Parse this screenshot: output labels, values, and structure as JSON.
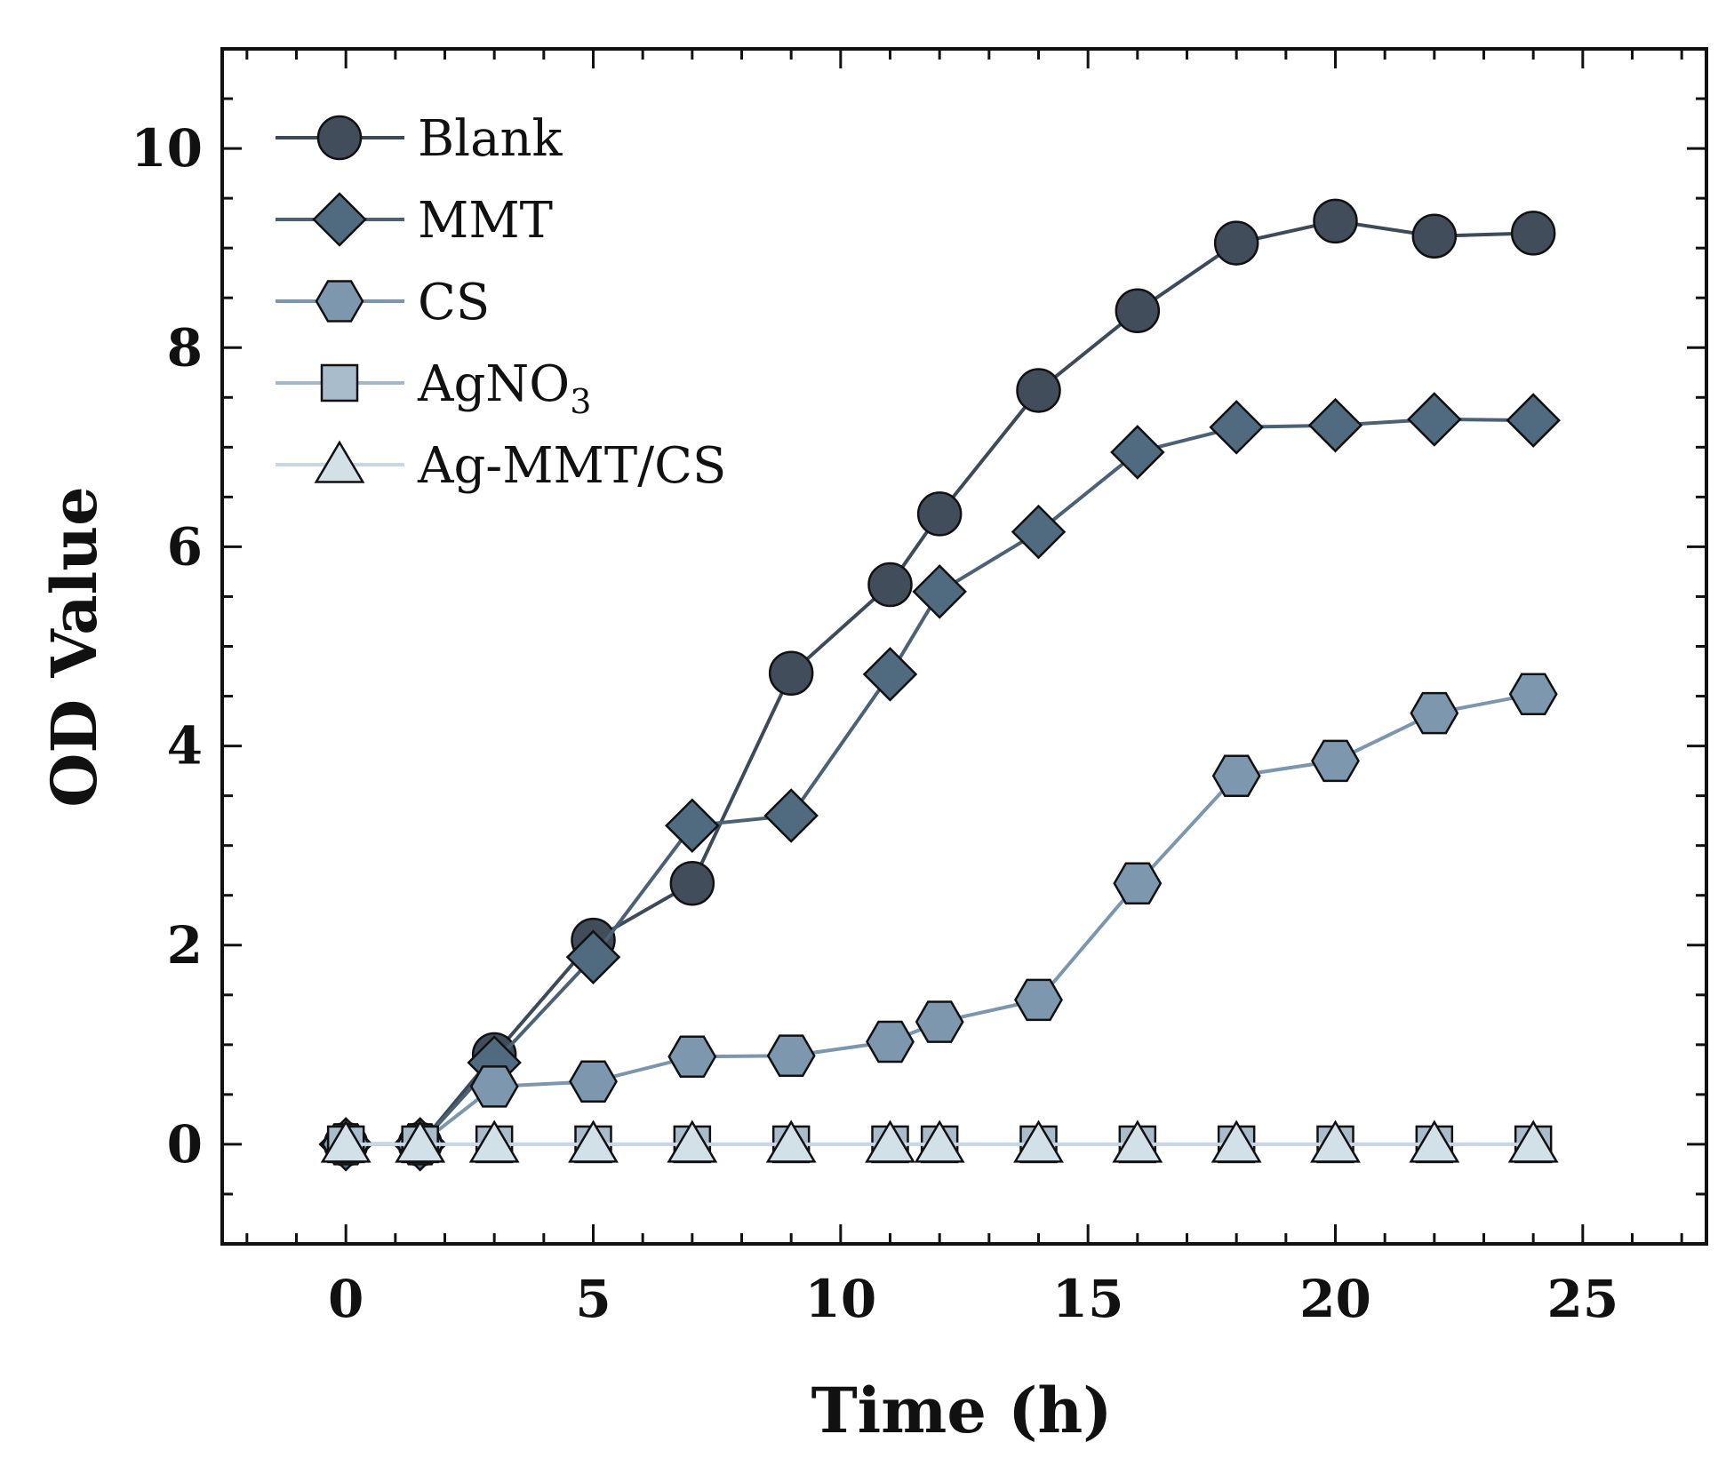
{
  "chart_data": {
    "type": "line",
    "title": "",
    "xlabel": "Time (h)",
    "ylabel": "OD Value",
    "xlim": [
      -2.5,
      27.5
    ],
    "ylim": [
      -1,
      11
    ],
    "xticks": [
      0,
      5,
      10,
      15,
      20,
      25
    ],
    "xtick_labels": [
      "0",
      "5",
      "10",
      "15",
      "20",
      "25"
    ],
    "yticks": [
      0,
      2,
      4,
      6,
      8,
      10
    ],
    "ytick_labels": [
      "0",
      "2",
      "4",
      "6",
      "8",
      "10"
    ],
    "grid": false,
    "legend_position": "top-left",
    "x": [
      0,
      1.5,
      3,
      5,
      7,
      9,
      11,
      12,
      14,
      16,
      18,
      20,
      22,
      24
    ],
    "series": [
      {
        "name": "Blank",
        "legend_main": "Blank",
        "legend_sub": "",
        "marker": "circle",
        "line_color": "#3d4a57",
        "fill_color": "#414d5a",
        "values": [
          0.0,
          0.0,
          0.9,
          2.05,
          2.62,
          4.73,
          5.62,
          6.33,
          7.57,
          8.37,
          9.05,
          9.27,
          9.12,
          9.15
        ]
      },
      {
        "name": "MMT",
        "legend_main": "MMT",
        "legend_sub": "",
        "marker": "diamond",
        "line_color": "#4b6175",
        "fill_color": "#506a80",
        "values": [
          0.0,
          0.0,
          0.82,
          1.88,
          3.2,
          3.3,
          4.72,
          5.55,
          6.15,
          6.95,
          7.2,
          7.22,
          7.28,
          7.27
        ]
      },
      {
        "name": "CS",
        "legend_main": "CS",
        "legend_sub": "",
        "marker": "hexagon",
        "line_color": "#7c97ad",
        "fill_color": "#7d98ae",
        "values": [
          0.0,
          0.0,
          0.58,
          0.63,
          0.88,
          0.89,
          1.03,
          1.23,
          1.45,
          2.62,
          3.7,
          3.85,
          4.33,
          4.52
        ]
      },
      {
        "name": "AgNO3",
        "legend_main": "AgNO",
        "legend_sub": "3",
        "marker": "square",
        "line_color": "#a4b8c8",
        "fill_color": "#a9bccb",
        "values": [
          0.0,
          0.0,
          0.0,
          0.0,
          0.0,
          0.0,
          0.0,
          0.0,
          0.0,
          0.0,
          0.0,
          0.0,
          0.0,
          0.0
        ]
      },
      {
        "name": "Ag-MMT/CS",
        "legend_main": "Ag-MMT/CS",
        "legend_sub": "",
        "marker": "triangle",
        "line_color": "#c9d6e6",
        "fill_color": "#d2e0e8",
        "values": [
          0.0,
          0.0,
          0.0,
          0.0,
          0.0,
          0.0,
          0.0,
          0.0,
          0.0,
          0.0,
          0.0,
          0.0,
          0.0,
          0.0
        ]
      }
    ]
  }
}
